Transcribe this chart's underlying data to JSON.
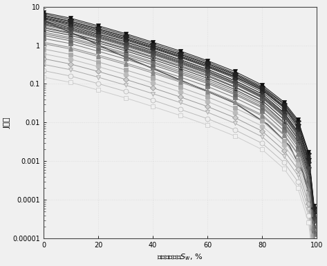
{
  "title": "",
  "xlabel": "润湿相饱和度$S_{w}$, %",
  "ylabel": "J函数",
  "xlim": [
    0,
    100
  ],
  "ylim_log": [
    1e-05,
    10
  ],
  "yticks": [
    1e-05,
    0.0001,
    0.001,
    0.01,
    0.1,
    1,
    10
  ],
  "ytick_labels": [
    "0.00001",
    "0.0001",
    "0.001",
    "0.01",
    "0.1",
    "1",
    "10"
  ],
  "xticks": [
    0,
    20,
    40,
    60,
    80,
    100
  ],
  "background_color": "#f0f0f0",
  "curves": [
    {
      "sw": [
        0,
        10,
        20,
        30,
        40,
        50,
        60,
        70,
        80,
        88,
        93,
        97,
        99
      ],
      "j": [
        5.0,
        3.5,
        2.2,
        1.4,
        0.85,
        0.5,
        0.28,
        0.15,
        0.07,
        0.025,
        0.008,
        0.001,
        5e-05
      ],
      "marker": "s",
      "mfc": "#333333",
      "mec": "#333333",
      "lc": "#333333",
      "ms": 4
    },
    {
      "sw": [
        0,
        10,
        20,
        30,
        40,
        50,
        60,
        70,
        80,
        88,
        93,
        97,
        99
      ],
      "j": [
        4.5,
        3.2,
        2.0,
        1.25,
        0.75,
        0.43,
        0.24,
        0.12,
        0.055,
        0.018,
        0.006,
        0.0008,
        4e-05
      ],
      "marker": "o",
      "mfc": "#444444",
      "mec": "#444444",
      "lc": "#444444",
      "ms": 4
    },
    {
      "sw": [
        0,
        10,
        20,
        30,
        40,
        50,
        60,
        70,
        80,
        88,
        93,
        97,
        99
      ],
      "j": [
        6.0,
        4.2,
        2.7,
        1.7,
        1.0,
        0.6,
        0.34,
        0.18,
        0.08,
        0.03,
        0.01,
        0.0015,
        6e-05
      ],
      "marker": "^",
      "mfc": "#222222",
      "mec": "#222222",
      "lc": "#222222",
      "ms": 4
    },
    {
      "sw": [
        0,
        10,
        20,
        30,
        40,
        50,
        60,
        70,
        80,
        88,
        93,
        97,
        99
      ],
      "j": [
        3.5,
        2.5,
        1.6,
        1.0,
        0.6,
        0.35,
        0.19,
        0.1,
        0.045,
        0.015,
        0.005,
        0.0006,
        3e-05
      ],
      "marker": "v",
      "mfc": "#555555",
      "mec": "#555555",
      "lc": "#555555",
      "ms": 4
    },
    {
      "sw": [
        0,
        10,
        20,
        30,
        40,
        50,
        60,
        70,
        80,
        88,
        93,
        97,
        99
      ],
      "j": [
        4.0,
        2.8,
        1.8,
        1.1,
        0.67,
        0.39,
        0.22,
        0.11,
        0.05,
        0.017,
        0.0055,
        0.0007,
        3.5e-05
      ],
      "marker": "D",
      "mfc": "none",
      "mec": "#333333",
      "lc": "#333333",
      "ms": 4
    },
    {
      "sw": [
        0,
        10,
        20,
        30,
        40,
        50,
        60,
        70,
        80,
        88,
        93,
        97,
        99
      ],
      "j": [
        3.0,
        2.1,
        1.35,
        0.85,
        0.51,
        0.3,
        0.17,
        0.085,
        0.038,
        0.012,
        0.004,
        0.0005,
        2.5e-05
      ],
      "marker": "s",
      "mfc": "none",
      "mec": "#555555",
      "lc": "#555555",
      "ms": 4
    },
    {
      "sw": [
        0,
        10,
        20,
        30,
        40,
        50,
        60,
        70,
        80,
        88,
        93,
        97,
        99
      ],
      "j": [
        5.5,
        3.9,
        2.5,
        1.55,
        0.93,
        0.55,
        0.31,
        0.16,
        0.073,
        0.026,
        0.009,
        0.0012,
        5e-05
      ],
      "marker": "o",
      "mfc": "none",
      "mec": "#444444",
      "lc": "#444444",
      "ms": 4
    },
    {
      "sw": [
        0,
        10,
        20,
        30,
        40,
        50,
        60,
        70,
        80,
        88,
        93,
        97,
        99
      ],
      "j": [
        2.5,
        1.8,
        1.15,
        0.72,
        0.43,
        0.25,
        0.14,
        0.072,
        0.032,
        0.01,
        0.0033,
        0.00042,
        2.1e-05
      ],
      "marker": "^",
      "mfc": "#333333",
      "mec": "#333333",
      "lc": "#333333",
      "ms": 4
    },
    {
      "sw": [
        0,
        10,
        20,
        30,
        40,
        50,
        60,
        70,
        80,
        88,
        93,
        97,
        99
      ],
      "j": [
        2.0,
        1.45,
        0.93,
        0.58,
        0.35,
        0.2,
        0.113,
        0.058,
        0.026,
        0.0082,
        0.0027,
        0.00034,
        1.7e-05
      ],
      "marker": "v",
      "mfc": "#666666",
      "mec": "#666666",
      "lc": "#666666",
      "ms": 4
    },
    {
      "sw": [
        0,
        10,
        20,
        30,
        40,
        50,
        60,
        70,
        80,
        88,
        93,
        97,
        99
      ],
      "j": [
        1.5,
        1.1,
        0.7,
        0.44,
        0.26,
        0.15,
        0.086,
        0.044,
        0.02,
        0.0062,
        0.002,
        0.00026,
        1.3e-05
      ],
      "marker": "s",
      "mfc": "#777777",
      "mec": "#777777",
      "lc": "#777777",
      "ms": 4
    },
    {
      "sw": [
        0,
        10,
        20,
        30,
        40,
        50,
        60,
        70,
        80,
        88,
        93,
        97,
        99
      ],
      "j": [
        6.5,
        4.6,
        2.95,
        1.85,
        1.1,
        0.65,
        0.37,
        0.19,
        0.086,
        0.031,
        0.011,
        0.0016,
        6.5e-05
      ],
      "marker": "D",
      "mfc": "#222222",
      "mec": "#222222",
      "lc": "#222222",
      "ms": 4
    },
    {
      "sw": [
        0,
        10,
        20,
        30,
        40,
        50,
        60,
        70,
        80,
        88,
        93,
        97,
        99
      ],
      "j": [
        3.8,
        2.7,
        1.73,
        1.08,
        0.65,
        0.38,
        0.21,
        0.11,
        0.049,
        0.016,
        0.0052,
        0.00066,
        3.3e-05
      ],
      "marker": "o",
      "mfc": "none",
      "mec": "#666666",
      "lc": "#666666",
      "ms": 5
    },
    {
      "sw": [
        0,
        10,
        20,
        30,
        40,
        50,
        60,
        70,
        80,
        88,
        93,
        97,
        99
      ],
      "j": [
        1.2,
        0.87,
        0.56,
        0.35,
        0.21,
        0.12,
        0.068,
        0.035,
        0.016,
        0.005,
        0.0016,
        0.0002,
        1e-05
      ],
      "marker": "^",
      "mfc": "#888888",
      "mec": "#888888",
      "lc": "#888888",
      "ms": 4
    },
    {
      "sw": [
        0,
        10,
        20,
        30,
        40,
        50,
        60,
        70,
        80,
        88,
        93,
        97,
        99
      ],
      "j": [
        7.0,
        5.0,
        3.2,
        2.0,
        1.2,
        0.71,
        0.4,
        0.21,
        0.094,
        0.034,
        0.012,
        0.0017,
        7e-05
      ],
      "marker": "v",
      "mfc": "#111111",
      "mec": "#111111",
      "lc": "#111111",
      "ms": 4
    },
    {
      "sw": [
        0,
        10,
        20,
        30,
        40,
        50,
        60,
        70,
        80,
        88,
        93,
        97,
        99
      ],
      "j": [
        0.8,
        0.58,
        0.37,
        0.23,
        0.14,
        0.082,
        0.046,
        0.024,
        0.011,
        0.0034,
        0.0011,
        0.00014,
        7e-06
      ],
      "marker": "s",
      "mfc": "#aaaaaa",
      "mec": "#aaaaaa",
      "lc": "#aaaaaa",
      "ms": 4
    },
    {
      "sw": [
        0,
        10,
        20,
        30,
        40,
        50,
        60,
        70,
        80,
        88,
        93,
        97,
        99
      ],
      "j": [
        4.8,
        3.4,
        2.18,
        1.36,
        0.82,
        0.48,
        0.27,
        0.14,
        0.062,
        0.021,
        0.007,
        0.00092,
        4.6e-05
      ],
      "marker": "D",
      "mfc": "#333333",
      "mec": "#333333",
      "lc": "#333333",
      "ms": 4
    },
    {
      "sw": [
        0,
        10,
        20,
        30,
        40,
        50,
        60,
        70,
        80,
        88,
        93,
        97,
        99
      ],
      "j": [
        0.6,
        0.435,
        0.28,
        0.175,
        0.105,
        0.062,
        0.035,
        0.018,
        0.0081,
        0.0026,
        0.00083,
        0.000106,
        5.3e-06
      ],
      "marker": "o",
      "mfc": "#bbbbbb",
      "mec": "#bbbbbb",
      "lc": "#bbbbbb",
      "ms": 5
    },
    {
      "sw": [
        0,
        10,
        20,
        30,
        40,
        50,
        60,
        70,
        80,
        88,
        93,
        97,
        99
      ],
      "j": [
        5.2,
        3.7,
        2.37,
        1.48,
        0.89,
        0.52,
        0.295,
        0.153,
        0.068,
        0.024,
        0.0079,
        0.001,
        5e-05
      ],
      "marker": "^",
      "mfc": "none",
      "mec": "#222222",
      "lc": "#222222",
      "ms": 4
    },
    {
      "sw": [
        0,
        10,
        20,
        30,
        40,
        50,
        60,
        70,
        80,
        88,
        93,
        97,
        99
      ],
      "j": [
        2.8,
        2.0,
        1.28,
        0.8,
        0.48,
        0.28,
        0.158,
        0.082,
        0.037,
        0.012,
        0.0038,
        0.00049,
        2.45e-05
      ],
      "marker": "v",
      "mfc": "#444444",
      "mec": "#444444",
      "lc": "#444444",
      "ms": 4
    },
    {
      "sw": [
        0,
        10,
        20,
        30,
        40,
        50,
        60,
        70,
        80,
        88,
        93,
        97,
        99
      ],
      "j": [
        3.3,
        2.35,
        1.51,
        0.94,
        0.57,
        0.33,
        0.187,
        0.097,
        0.043,
        0.014,
        0.0045,
        0.00058,
        2.9e-05
      ],
      "marker": "s",
      "mfc": "#555555",
      "mec": "#555555",
      "lc": "#555555",
      "ms": 4
    },
    {
      "sw": [
        0,
        10,
        20,
        30,
        40,
        50,
        60,
        70,
        80,
        88,
        93,
        97,
        99
      ],
      "j": [
        0.45,
        0.325,
        0.21,
        0.131,
        0.079,
        0.046,
        0.026,
        0.0134,
        0.006,
        0.0019,
        0.00062,
        7.9e-05,
        3.9e-06
      ],
      "marker": "D",
      "mfc": "#cccccc",
      "mec": "#999999",
      "lc": "#999999",
      "ms": 4
    },
    {
      "sw": [
        0,
        10,
        20,
        30,
        40,
        50,
        60,
        70,
        80,
        88,
        93,
        97,
        99
      ],
      "j": [
        1.8,
        1.3,
        0.832,
        0.52,
        0.31,
        0.182,
        0.103,
        0.053,
        0.024,
        0.0075,
        0.0024,
        0.00031,
        1.55e-05
      ],
      "marker": "o",
      "mfc": "#666666",
      "mec": "#666666",
      "lc": "#666666",
      "ms": 4
    },
    {
      "sw": [
        0,
        10,
        20,
        30,
        40,
        50,
        60,
        70,
        80,
        88,
        93,
        97,
        99
      ],
      "j": [
        4.2,
        3.0,
        1.92,
        1.2,
        0.72,
        0.42,
        0.238,
        0.123,
        0.055,
        0.018,
        0.006,
        0.00077,
        3.85e-05
      ],
      "marker": "^",
      "mfc": "#333333",
      "mec": "#333333",
      "lc": "#333333",
      "ms": 4
    },
    {
      "sw": [
        0,
        10,
        20,
        30,
        40,
        50,
        60,
        70,
        80,
        88,
        93,
        97,
        99
      ],
      "j": [
        0.32,
        0.232,
        0.149,
        0.093,
        0.056,
        0.033,
        0.0185,
        0.0096,
        0.0043,
        0.00136,
        0.00044,
        5.6e-05,
        2.8e-06
      ],
      "marker": "v",
      "mfc": "#dddddd",
      "mec": "#aaaaaa",
      "lc": "#aaaaaa",
      "ms": 4
    },
    {
      "sw": [
        0,
        10,
        20,
        30,
        40,
        50,
        60,
        70,
        80,
        88,
        93,
        97,
        99
      ],
      "j": [
        2.2,
        1.58,
        1.01,
        0.63,
        0.378,
        0.221,
        0.125,
        0.065,
        0.029,
        0.0092,
        0.003,
        0.00038,
        1.9e-05
      ],
      "marker": "s",
      "mfc": "none",
      "mec": "#777777",
      "lc": "#777777",
      "ms": 5
    },
    {
      "sw": [
        0,
        10,
        20,
        30,
        40,
        50,
        60,
        70,
        80,
        88,
        93,
        97,
        99
      ],
      "j": [
        5.8,
        4.14,
        2.65,
        1.66,
        0.996,
        0.583,
        0.33,
        0.171,
        0.076,
        0.027,
        0.0091,
        0.00122,
        6.1e-05
      ],
      "marker": "D",
      "mfc": "#222222",
      "mec": "#222222",
      "lc": "#222222",
      "ms": 4
    },
    {
      "sw": [
        0,
        10,
        20,
        30,
        40,
        50,
        60,
        70,
        80,
        88,
        93,
        97,
        99
      ],
      "j": [
        0.22,
        0.159,
        0.102,
        0.064,
        0.038,
        0.022,
        0.0126,
        0.0065,
        0.0029,
        0.00093,
        0.0003,
        3.85e-05,
        1.9e-06
      ],
      "marker": "o",
      "mfc": "#eeeeee",
      "mec": "#bbbbbb",
      "lc": "#bbbbbb",
      "ms": 5
    },
    {
      "sw": [
        0,
        10,
        20,
        30,
        40,
        50,
        60,
        70,
        80,
        88,
        93,
        97,
        99
      ],
      "j": [
        1.1,
        0.795,
        0.51,
        0.318,
        0.191,
        0.112,
        0.063,
        0.033,
        0.0147,
        0.0047,
        0.00151,
        0.000193,
        9.7e-06
      ],
      "marker": "^",
      "mfc": "#888888",
      "mec": "#888888",
      "lc": "#888888",
      "ms": 4
    },
    {
      "sw": [
        0,
        10,
        20,
        30,
        40,
        50,
        60,
        70,
        80,
        88,
        93,
        97,
        99
      ],
      "j": [
        3.6,
        2.57,
        1.645,
        1.028,
        0.617,
        0.361,
        0.204,
        0.106,
        0.047,
        0.015,
        0.005,
        0.00064,
        3.2e-05
      ],
      "marker": "v",
      "mfc": "#444444",
      "mec": "#444444",
      "lc": "#444444",
      "ms": 4
    },
    {
      "sw": [
        0,
        10,
        20,
        30,
        40,
        50,
        60,
        70,
        80,
        88,
        93,
        97,
        99
      ],
      "j": [
        0.15,
        0.109,
        0.0695,
        0.0434,
        0.026,
        0.0153,
        0.0086,
        0.0045,
        0.002,
        0.00064,
        0.000206,
        2.63e-05,
        1.3e-06
      ],
      "marker": "s",
      "mfc": "#f0f0f0",
      "mec": "#cccccc",
      "lc": "#cccccc",
      "ms": 5
    }
  ],
  "smooth_curve": {
    "sw": [
      0,
      5,
      15,
      25,
      40,
      55,
      70,
      82,
      90,
      95,
      98
    ],
    "j": [
      4.5,
      3.0,
      1.5,
      0.7,
      0.25,
      0.09,
      0.032,
      0.009,
      0.0025,
      0.0005,
      8e-05
    ],
    "color": "#555555",
    "lw": 1.2
  }
}
